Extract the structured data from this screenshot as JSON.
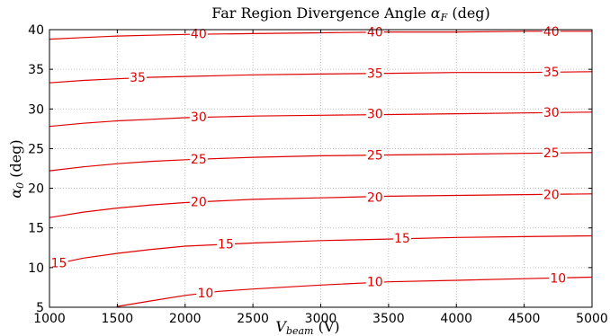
{
  "chart_data": {
    "type": "line",
    "title_prefix": "Far Region Divergence Angle ",
    "title_symbol": "α",
    "title_subscript": "F",
    "title_suffix": " (deg)",
    "xlabel_symbol": "V",
    "xlabel_subscript": "beam",
    "xlabel_suffix": " (V)",
    "ylabel_symbol": "α",
    "ylabel_subscript": "0",
    "ylabel_suffix": " (deg)",
    "xlim": [
      1000,
      5000
    ],
    "ylim": [
      5,
      40
    ],
    "xticks": [
      "1000",
      "1500",
      "2000",
      "2500",
      "3000",
      "3500",
      "4000",
      "4500",
      "5000"
    ],
    "yticks": [
      "5",
      "10",
      "15",
      "20",
      "25",
      "30",
      "35",
      "40"
    ],
    "grid": true,
    "line_color": "#e00000",
    "series": [
      {
        "name": "10",
        "x": [
          1500,
          1750,
          2000,
          2250,
          2500,
          3000,
          3500,
          4000,
          4500,
          5000
        ],
        "y": [
          5.1,
          5.8,
          6.5,
          7.0,
          7.3,
          7.8,
          8.2,
          8.4,
          8.6,
          8.8
        ]
      },
      {
        "name": "15",
        "x": [
          1000,
          1250,
          1500,
          1750,
          2000,
          2500,
          3000,
          3500,
          4000,
          4500,
          5000
        ],
        "y": [
          10.3,
          11.2,
          11.8,
          12.3,
          12.7,
          13.1,
          13.4,
          13.6,
          13.8,
          13.9,
          14.0
        ]
      },
      {
        "name": "20",
        "x": [
          1000,
          1250,
          1500,
          1750,
          2000,
          2500,
          3000,
          3500,
          4000,
          4500,
          5000
        ],
        "y": [
          16.3,
          17.0,
          17.5,
          17.9,
          18.2,
          18.6,
          18.8,
          19.0,
          19.1,
          19.2,
          19.3
        ]
      },
      {
        "name": "25",
        "x": [
          1000,
          1250,
          1500,
          1750,
          2000,
          2500,
          3000,
          3500,
          4000,
          4500,
          5000
        ],
        "y": [
          22.2,
          22.7,
          23.1,
          23.4,
          23.6,
          23.9,
          24.1,
          24.2,
          24.3,
          24.4,
          24.5
        ]
      },
      {
        "name": "30",
        "x": [
          1000,
          1250,
          1500,
          1750,
          2000,
          2500,
          3000,
          3500,
          4000,
          4500,
          5000
        ],
        "y": [
          27.8,
          28.2,
          28.5,
          28.7,
          28.9,
          29.1,
          29.2,
          29.3,
          29.4,
          29.5,
          29.6
        ]
      },
      {
        "name": "35",
        "x": [
          1000,
          1250,
          1500,
          1750,
          2000,
          2500,
          3000,
          3500,
          4000,
          4500,
          5000
        ],
        "y": [
          33.3,
          33.6,
          33.8,
          34.0,
          34.1,
          34.3,
          34.4,
          34.5,
          34.6,
          34.6,
          34.7
        ]
      },
      {
        "name": "40",
        "x": [
          1000,
          1250,
          1500,
          1750,
          2000,
          2500,
          3000,
          3500,
          4000,
          4500,
          5000
        ],
        "y": [
          38.8,
          39.0,
          39.2,
          39.3,
          39.4,
          39.5,
          39.6,
          39.7,
          39.7,
          39.8,
          39.8
        ]
      }
    ],
    "contour_labels": [
      {
        "text": "10",
        "x": 2150,
        "y": 6.8
      },
      {
        "text": "10",
        "x": 3400,
        "y": 8.2
      },
      {
        "text": "10",
        "x": 4750,
        "y": 8.7
      },
      {
        "text": "15",
        "x": 1070,
        "y": 10.6
      },
      {
        "text": "15",
        "x": 2300,
        "y": 13.0
      },
      {
        "text": "15",
        "x": 3600,
        "y": 13.7
      },
      {
        "text": "20",
        "x": 2100,
        "y": 18.3
      },
      {
        "text": "20",
        "x": 3400,
        "y": 18.9
      },
      {
        "text": "20",
        "x": 4700,
        "y": 19.2
      },
      {
        "text": "25",
        "x": 2100,
        "y": 23.7
      },
      {
        "text": "25",
        "x": 3400,
        "y": 24.2
      },
      {
        "text": "25",
        "x": 4700,
        "y": 24.5
      },
      {
        "text": "30",
        "x": 2100,
        "y": 29.0
      },
      {
        "text": "30",
        "x": 3400,
        "y": 29.4
      },
      {
        "text": "30",
        "x": 4700,
        "y": 29.6
      },
      {
        "text": "35",
        "x": 1650,
        "y": 34.0
      },
      {
        "text": "35",
        "x": 3400,
        "y": 34.5
      },
      {
        "text": "35",
        "x": 4700,
        "y": 34.7
      },
      {
        "text": "40",
        "x": 2100,
        "y": 39.5
      },
      {
        "text": "40",
        "x": 3400,
        "y": 39.7
      },
      {
        "text": "40",
        "x": 4700,
        "y": 39.8
      }
    ]
  }
}
